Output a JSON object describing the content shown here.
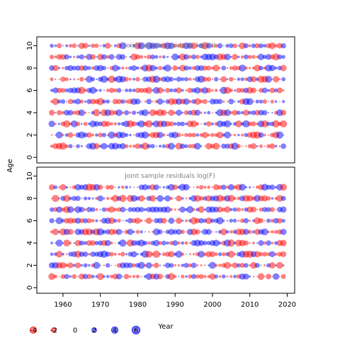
{
  "chart_data": {
    "type": "scatter",
    "subtype": "bubble",
    "panels": [
      {
        "title": "Joint sample residuals log(N)",
        "ages": [
          1,
          2,
          3,
          4,
          5,
          6,
          7,
          8,
          9,
          10
        ],
        "seed": 11
      },
      {
        "title": "Joint sample residuals log(F)",
        "ages": [
          1,
          2,
          3,
          4,
          5,
          6,
          7,
          8,
          9
        ],
        "seed": 29
      }
    ],
    "ylabel": "Age",
    "xlabel": "Year",
    "xlim": [
      1953,
      2022
    ],
    "ylim": [
      -0.5,
      10.8
    ],
    "x_ticks": [
      "1960",
      "1970",
      "1980",
      "1990",
      "2000",
      "2010",
      "2020"
    ],
    "x_tick_values": [
      1960,
      1970,
      1980,
      1990,
      2000,
      2010,
      2020
    ],
    "y_ticks": [
      "0",
      "2",
      "4",
      "6",
      "8",
      "10"
    ],
    "y_tick_values": [
      0,
      2,
      4,
      6,
      8,
      10
    ],
    "years": [
      1957,
      2019
    ],
    "legend": {
      "labels": [
        "-4",
        "-2",
        "0",
        "2",
        "4",
        "6"
      ],
      "values": [
        -4,
        -2,
        0,
        2,
        4,
        6
      ]
    },
    "colors": {
      "negative": "#ff0000",
      "positive": "#0000ff",
      "fill_alpha": 0.5
    },
    "grid": false
  }
}
